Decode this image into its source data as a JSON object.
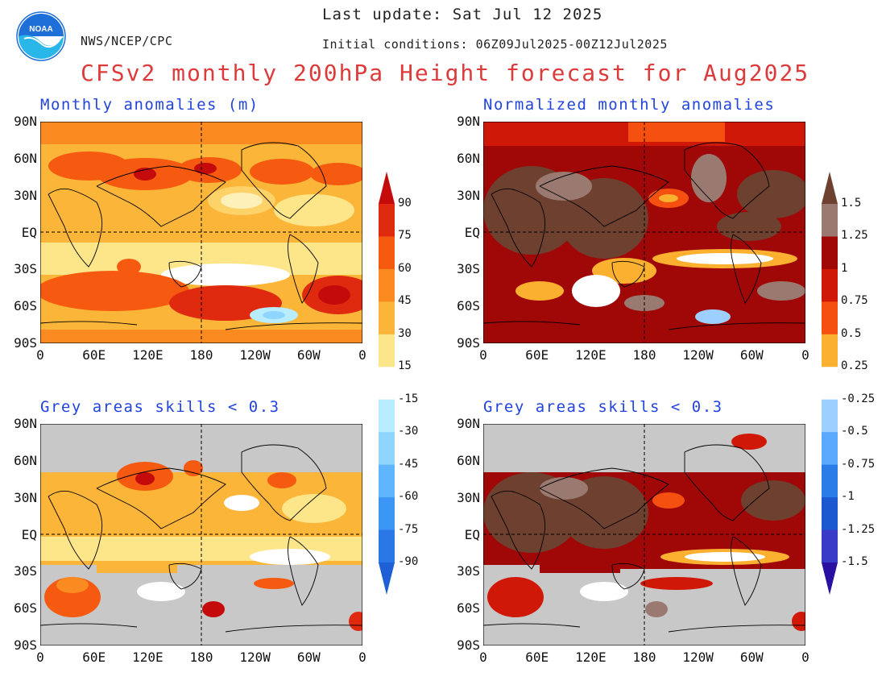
{
  "header": {
    "agency": "NWS/NCEP/CPC",
    "last_update": "Last update: Sat Jul 12 2025",
    "initial_conditions": "Initial conditions: 06Z09Jul2025-00Z12Jul2025",
    "title": "CFSv2 monthly 200hPa Height forecast for Aug2025"
  },
  "logo": {
    "text": "NOAA",
    "color": "#1e6fd8"
  },
  "panels": [
    {
      "id": "top-left",
      "title": "Monthly anomalies (m)"
    },
    {
      "id": "top-right",
      "title": "Normalized monthly anomalies"
    },
    {
      "id": "bottom-left",
      "title": "Grey areas skills < 0.3"
    },
    {
      "id": "bottom-right",
      "title": "Grey areas skills < 0.3"
    }
  ],
  "axes": {
    "lat_labels": [
      "90N",
      "60N",
      "30N",
      "EQ",
      "30S",
      "60S",
      "90S"
    ],
    "lon_labels": [
      "0",
      "60E",
      "120E",
      "180",
      "120W",
      "60W",
      "0"
    ]
  },
  "colorbar_left": {
    "labels": [
      "90",
      "75",
      "60",
      "45",
      "30",
      "15",
      "-15",
      "-30",
      "-45",
      "-60",
      "-75",
      "-90"
    ],
    "colors": [
      "#c40a0a",
      "#e02a10",
      "#f55a10",
      "#fb8a20",
      "#fbb538",
      "#fde68a",
      "#ffffff",
      "#b8ecff",
      "#8fd6ff",
      "#5fb6ff",
      "#3c96f5",
      "#2a78e8",
      "#1e5fd8"
    ]
  },
  "colorbar_right": {
    "labels": [
      "1.5",
      "1.25",
      "1",
      "0.75",
      "0.5",
      "0.25",
      "-0.25",
      "-0.5",
      "-0.75",
      "-1",
      "-1.25",
      "-1.5"
    ],
    "colors": [
      "#6e4030",
      "#9a7a70",
      "#a00808",
      "#d01808",
      "#f55010",
      "#fbb030",
      "#ffffff",
      "#9ed0ff",
      "#5aa8ff",
      "#2a7ce8",
      "#1c58d0",
      "#3a3ac8",
      "#2a10a0"
    ]
  },
  "map_colors": {
    "orange_pale": "#fde68a",
    "orange_light": "#fbb538",
    "orange": "#fb8a20",
    "orange_dark": "#f55a10",
    "red": "#e02a10",
    "dark_red": "#c40a0a",
    "brown": "#6e4030",
    "grey_brown": "#9a7a70",
    "skill_grey": "#c8c8c8",
    "light_blue": "#b8ecff",
    "blue": "#8fd6ff"
  }
}
